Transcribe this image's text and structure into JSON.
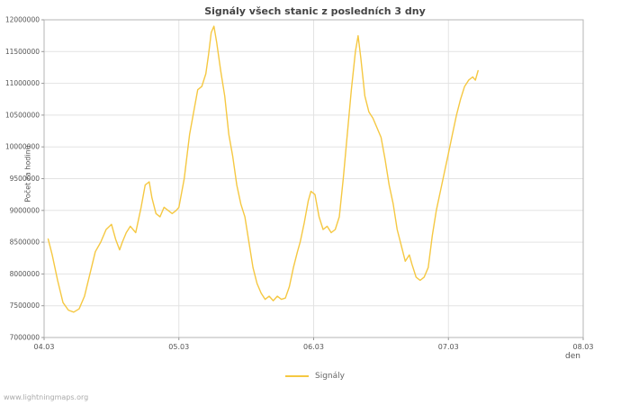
{
  "chart_data": {
    "type": "line",
    "title": "Signály všech stanic z posledních 3 dny",
    "xlabel": "den",
    "ylabel": "Počet za hodinu",
    "legend": "Signály",
    "line_color": "#f5c842",
    "grid": true,
    "legend_position": "bottom-center",
    "xlim": [
      0,
      4
    ],
    "ylim": [
      7000000,
      12000000
    ],
    "xticks": [
      {
        "value": 0,
        "label": "04.03"
      },
      {
        "value": 1,
        "label": "05.03"
      },
      {
        "value": 2,
        "label": "06.03"
      },
      {
        "value": 3,
        "label": "07.03"
      },
      {
        "value": 4,
        "label": "08.03"
      }
    ],
    "yticks": [
      {
        "value": 7000000,
        "label": "7000000"
      },
      {
        "value": 7500000,
        "label": "7500000"
      },
      {
        "value": 8000000,
        "label": "8000000"
      },
      {
        "value": 8500000,
        "label": "8500000"
      },
      {
        "value": 9000000,
        "label": "9000000"
      },
      {
        "value": 9500000,
        "label": "9500000"
      },
      {
        "value": 10000000,
        "label": "10000000"
      },
      {
        "value": 10500000,
        "label": "10500000"
      },
      {
        "value": 11000000,
        "label": "11000000"
      },
      {
        "value": 11500000,
        "label": "11500000"
      },
      {
        "value": 12000000,
        "label": "12000000"
      }
    ],
    "series": [
      {
        "name": "Signály",
        "x": [
          0.03,
          0.06,
          0.1,
          0.14,
          0.18,
          0.22,
          0.26,
          0.3,
          0.34,
          0.38,
          0.42,
          0.46,
          0.5,
          0.53,
          0.56,
          0.58,
          0.61,
          0.64,
          0.68,
          0.72,
          0.75,
          0.78,
          0.8,
          0.83,
          0.86,
          0.89,
          0.92,
          0.95,
          0.98,
          1.0,
          1.04,
          1.08,
          1.11,
          1.14,
          1.17,
          1.2,
          1.22,
          1.24,
          1.26,
          1.28,
          1.31,
          1.34,
          1.37,
          1.4,
          1.43,
          1.46,
          1.49,
          1.52,
          1.55,
          1.58,
          1.61,
          1.64,
          1.67,
          1.7,
          1.73,
          1.76,
          1.79,
          1.82,
          1.85,
          1.88,
          1.9,
          1.93,
          1.96,
          1.98,
          2.01,
          2.04,
          2.07,
          2.1,
          2.13,
          2.16,
          2.19,
          2.22,
          2.25,
          2.28,
          2.31,
          2.33,
          2.35,
          2.38,
          2.41,
          2.44,
          2.47,
          2.5,
          2.53,
          2.56,
          2.59,
          2.62,
          2.65,
          2.68,
          2.71,
          2.73,
          2.76,
          2.79,
          2.82,
          2.85,
          2.88,
          2.91,
          2.94,
          2.97,
          3.0,
          3.03,
          3.06,
          3.09,
          3.12,
          3.15,
          3.18,
          3.2,
          3.22
        ],
        "y": [
          8550000,
          8300000,
          7900000,
          7550000,
          7430000,
          7400000,
          7450000,
          7650000,
          8000000,
          8350000,
          8500000,
          8700000,
          8780000,
          8550000,
          8380000,
          8500000,
          8650000,
          8750000,
          8650000,
          9050000,
          9400000,
          9450000,
          9200000,
          8950000,
          8900000,
          9050000,
          9000000,
          8950000,
          9000000,
          9050000,
          9500000,
          10200000,
          10550000,
          10900000,
          10950000,
          11150000,
          11450000,
          11800000,
          11900000,
          11650000,
          11200000,
          10800000,
          10200000,
          9850000,
          9400000,
          9100000,
          8900000,
          8500000,
          8100000,
          7850000,
          7700000,
          7600000,
          7650000,
          7580000,
          7650000,
          7600000,
          7620000,
          7800000,
          8100000,
          8350000,
          8500000,
          8800000,
          9150000,
          9300000,
          9250000,
          8900000,
          8700000,
          8750000,
          8650000,
          8700000,
          8900000,
          9500000,
          10200000,
          10900000,
          11500000,
          11750000,
          11400000,
          10800000,
          10550000,
          10450000,
          10300000,
          10150000,
          9800000,
          9400000,
          9100000,
          8700000,
          8450000,
          8200000,
          8300000,
          8150000,
          7950000,
          7900000,
          7950000,
          8100000,
          8600000,
          9000000,
          9300000,
          9600000,
          9900000,
          10200000,
          10500000,
          10750000,
          10950000,
          11050000,
          11100000,
          11050000,
          11200000
        ]
      }
    ]
  },
  "footer": {
    "text": "www.lightningmaps.org"
  }
}
